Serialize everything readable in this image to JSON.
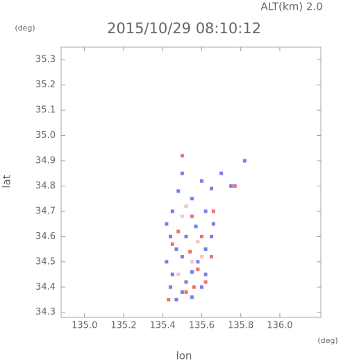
{
  "chart_data": {
    "type": "scatter",
    "title": "2015/10/29 08:10:12",
    "subtitle": "ALT(km) 2.0",
    "y_unit": "(deg)",
    "x_unit": "(deg)",
    "y_label": "lat",
    "x_label": "lon",
    "xlim": [
      134.88,
      136.21
    ],
    "ylim": [
      34.28,
      35.35
    ],
    "xticks": [
      {
        "value": 135.0,
        "label": "135.0"
      },
      135.2,
      135.4,
      135.6,
      135.8,
      {
        "value": 136.0,
        "label": "136.0"
      }
    ],
    "yticks": [
      34.3,
      34.4,
      34.5,
      34.6,
      34.7,
      34.8,
      34.9,
      {
        "value": 35.0,
        "label": "35.0"
      },
      35.1,
      35.2,
      35.3
    ],
    "series": [
      {
        "color": "#7b7bf0",
        "x": [
          135.45,
          135.42,
          135.44,
          135.47,
          135.42,
          135.45,
          135.44,
          135.5,
          135.55,
          135.6,
          135.62,
          135.58,
          135.62,
          135.65,
          135.66,
          135.62,
          135.55,
          135.48,
          135.5,
          135.6,
          135.65,
          135.7,
          135.75,
          135.82,
          135.52,
          135.57,
          135.5,
          135.55,
          135.52,
          135.47
        ],
        "y": [
          34.7,
          34.65,
          34.6,
          34.55,
          34.5,
          34.45,
          34.4,
          34.38,
          34.36,
          34.4,
          34.45,
          34.5,
          34.55,
          34.6,
          34.65,
          34.7,
          34.75,
          34.78,
          34.85,
          34.82,
          34.79,
          34.85,
          34.8,
          34.9,
          34.6,
          34.64,
          34.52,
          34.46,
          34.42,
          34.35
        ]
      },
      {
        "color": "#f07070",
        "x": [
          135.43,
          135.5,
          135.77,
          135.55,
          135.6,
          135.48,
          135.58,
          135.62,
          135.52,
          135.65,
          135.45,
          135.66,
          135.54,
          135.56
        ],
        "y": [
          34.35,
          34.92,
          34.8,
          34.68,
          34.6,
          34.62,
          34.47,
          34.42,
          34.38,
          34.52,
          34.57,
          34.7,
          34.54,
          34.4
        ]
      },
      {
        "color": "#f4c4c4",
        "x": [
          135.52,
          135.5,
          135.58,
          135.55,
          135.6,
          135.48
        ],
        "y": [
          34.72,
          34.68,
          34.58,
          34.5,
          34.52,
          34.45
        ]
      }
    ]
  }
}
